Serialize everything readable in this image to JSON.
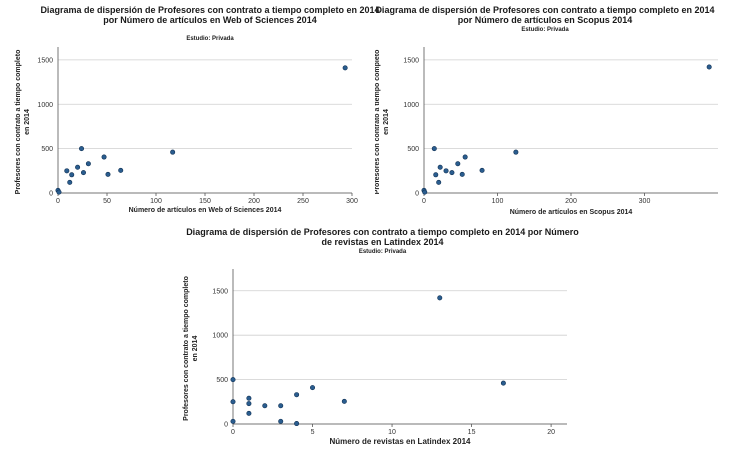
{
  "chart_data": [
    {
      "type": "scatter",
      "title": "Diagrama de dispersión de Profesores con contrato a tiempo completo en 2014 por Número de artículos en Web of Sciences 2014",
      "subtitle": "Estudio: Privada",
      "xlabel": "Número de artículos en Web of Sciences 2014",
      "ylabel": "Profesores con contrato a tiempo completo en 2014",
      "xlim": [
        0,
        300
      ],
      "ylim": [
        0,
        1600
      ],
      "xticks": [
        0,
        50,
        100,
        150,
        200,
        250,
        300
      ],
      "yticks": [
        0,
        500,
        1000,
        1500
      ],
      "grid": "horizontal",
      "color": "#2a5d8f",
      "points": [
        {
          "x": 0,
          "y": 30
        },
        {
          "x": 1,
          "y": 10
        },
        {
          "x": 9,
          "y": 250
        },
        {
          "x": 12,
          "y": 120
        },
        {
          "x": 14,
          "y": 205
        },
        {
          "x": 20,
          "y": 290
        },
        {
          "x": 24,
          "y": 500
        },
        {
          "x": 26,
          "y": 230
        },
        {
          "x": 31,
          "y": 330
        },
        {
          "x": 47,
          "y": 405
        },
        {
          "x": 51,
          "y": 210
        },
        {
          "x": 64,
          "y": 255
        },
        {
          "x": 117,
          "y": 460
        },
        {
          "x": 293,
          "y": 1410
        }
      ]
    },
    {
      "type": "scatter",
      "title": "Diagrama de dispersión de Profesores con contrato a tiempo completo en 2014 por Número de artículos en Scopus 2014",
      "subtitle": "Estudio: Privada",
      "xlabel": "Número de artículos en Scopus 2014",
      "ylabel": "Profesores con contrato a tiempo completo en 2014",
      "xlim": [
        0,
        400
      ],
      "ylim": [
        0,
        1600
      ],
      "xticks": [
        0,
        100,
        200,
        300
      ],
      "yticks": [
        0,
        500,
        1000,
        1500
      ],
      "grid": "horizontal",
      "color": "#2a5d8f",
      "points": [
        {
          "x": 0,
          "y": 30
        },
        {
          "x": 1,
          "y": 10
        },
        {
          "x": 14,
          "y": 500
        },
        {
          "x": 16,
          "y": 205
        },
        {
          "x": 20,
          "y": 120
        },
        {
          "x": 22,
          "y": 290
        },
        {
          "x": 30,
          "y": 250
        },
        {
          "x": 38,
          "y": 230
        },
        {
          "x": 46,
          "y": 330
        },
        {
          "x": 52,
          "y": 210
        },
        {
          "x": 56,
          "y": 405
        },
        {
          "x": 79,
          "y": 255
        },
        {
          "x": 125,
          "y": 460
        },
        {
          "x": 388,
          "y": 1420
        }
      ]
    },
    {
      "type": "scatter",
      "title": "Diagrama de dispersión de Profesores con contrato a tiempo completo en 2014 por Número de revistas en Latindex 2014",
      "subtitle": "Estudio: Privada",
      "xlabel": "Número de revistas en Latindex 2014",
      "ylabel": "Profesores con contrato a tiempo completo en 2014",
      "xlim": [
        0,
        21
      ],
      "ylim": [
        0,
        1700
      ],
      "xticks": [
        0,
        5,
        10,
        15,
        20
      ],
      "yticks": [
        0,
        500,
        1000,
        1500
      ],
      "grid": "horizontal",
      "color": "#2a5d8f",
      "points": [
        {
          "x": 0,
          "y": 500
        },
        {
          "x": 0,
          "y": 250
        },
        {
          "x": 0,
          "y": 30
        },
        {
          "x": 1,
          "y": 290
        },
        {
          "x": 1,
          "y": 230
        },
        {
          "x": 1,
          "y": 120
        },
        {
          "x": 2,
          "y": 205
        },
        {
          "x": 3,
          "y": 205
        },
        {
          "x": 3,
          "y": 30
        },
        {
          "x": 4,
          "y": 330
        },
        {
          "x": 4,
          "y": 5
        },
        {
          "x": 5,
          "y": 410
        },
        {
          "x": 7,
          "y": 255
        },
        {
          "x": 13,
          "y": 1420
        },
        {
          "x": 17,
          "y": 460
        }
      ]
    }
  ]
}
